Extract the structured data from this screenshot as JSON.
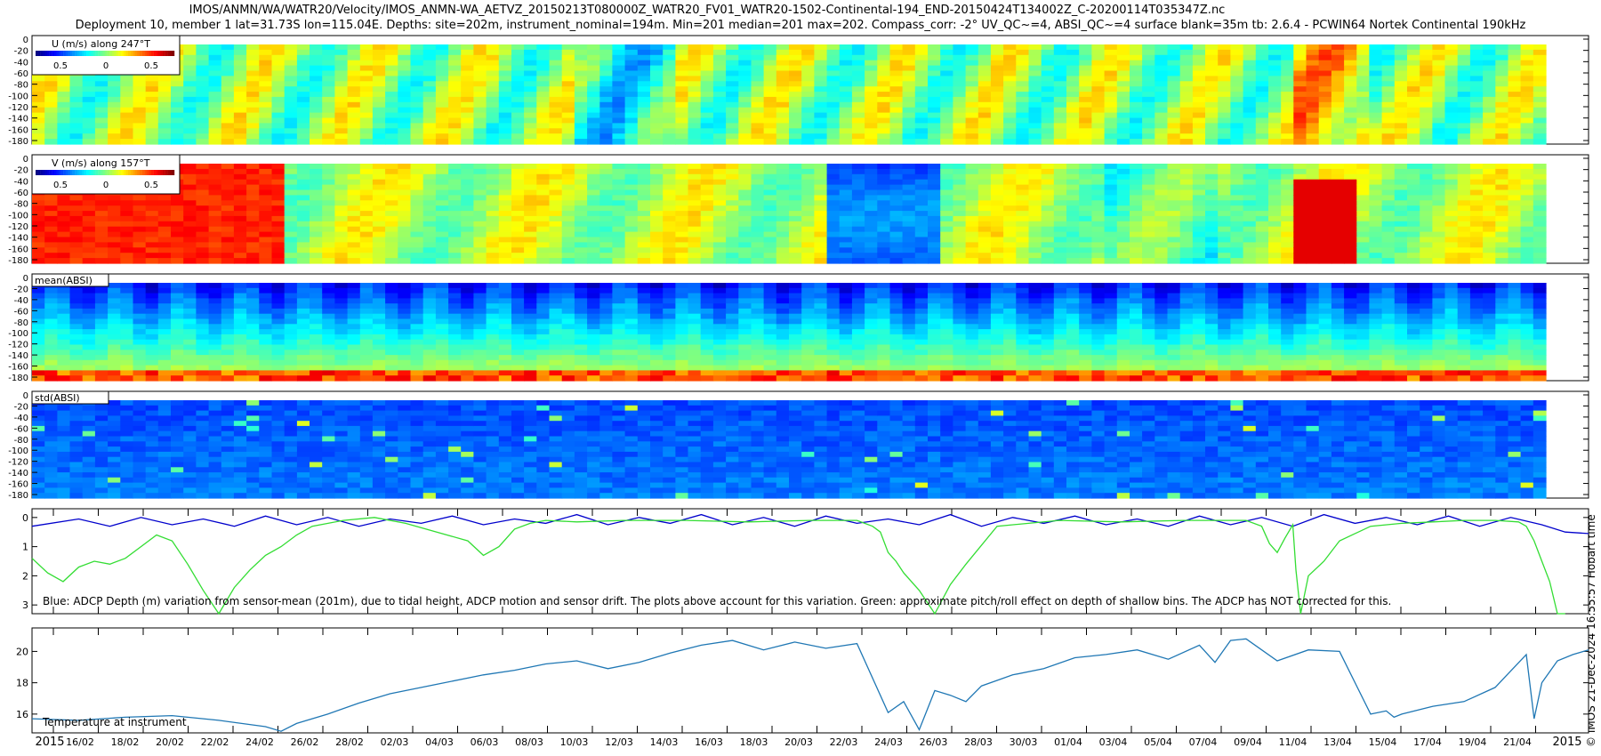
{
  "title": {
    "line1": "IMOS/ANMN/WA/WATR20/Velocity/IMOS_ANMN-WA_AETVZ_20150213T080000Z_WATR20_FV01_WATR20-1502-Continental-194_END-20150424T134002Z_C-20200114T035347Z.nc",
    "line2": "Deployment 10, member 1 lat=31.73S lon=115.04E. Depths: site=202m, instrument_nominal=194m. Min=201 median=201 max=202. Compass_corr: -2° UV_QC~=4, ABSI_QC~=4 surface blank=35m tb: 2.6.4 - PCWIN64 Nortek Continental 190kHz"
  },
  "credit": "© IMOS 21-Dec-2024 16:55:57 Hobart time",
  "chart_data": [
    {
      "type": "heatmap",
      "id": "u",
      "label": "U (m/s) along 247°T",
      "colorbar_ticks": [
        "0.5",
        "0",
        "0.5"
      ],
      "y_ticks": [
        "0",
        "-20",
        "-40",
        "-60",
        "-80",
        "-100",
        "-120",
        "-140",
        "-160",
        "-180"
      ],
      "ylim": [
        -190,
        0
      ]
    },
    {
      "type": "heatmap",
      "id": "v",
      "label": "V (m/s) along 157°T",
      "colorbar_ticks": [
        "0.5",
        "0",
        "0.5"
      ],
      "y_ticks": [
        "0",
        "-20",
        "-40",
        "-60",
        "-80",
        "-100",
        "-120",
        "-140",
        "-160",
        "-180"
      ],
      "ylim": [
        -190,
        0
      ]
    },
    {
      "type": "heatmap",
      "id": "mean_absi",
      "label": "mean(ABSI)",
      "y_ticks": [
        "0",
        "-20",
        "-40",
        "-60",
        "-80",
        "-100",
        "-120",
        "-140",
        "-160",
        "-180"
      ],
      "ylim": [
        -190,
        0
      ]
    },
    {
      "type": "heatmap",
      "id": "std_absi",
      "label": "std(ABSI)",
      "y_ticks": [
        "0",
        "-20",
        "-40",
        "-60",
        "-80",
        "-100",
        "-120",
        "-140",
        "-160",
        "-180"
      ],
      "ylim": [
        -190,
        0
      ]
    },
    {
      "type": "line",
      "id": "depth",
      "annotation": "Blue: ADCP Depth (m) variation from sensor-mean (201m), due to tidal height, ADCP motion and sensor drift. The plots above account for this variation. Green: approximate pitch/roll effect on depth of shallow bins. The ADCP has NOT corrected for this.",
      "y_ticks": [
        "0",
        "1",
        "2",
        "3"
      ],
      "ylim": [
        3.3,
        -0.3
      ],
      "series": [
        {
          "name": "ADCP depth variation",
          "color": "#0000cc",
          "x": [
            0,
            0.03,
            0.05,
            0.07,
            0.09,
            0.11,
            0.13,
            0.15,
            0.17,
            0.19,
            0.21,
            0.23,
            0.25,
            0.27,
            0.29,
            0.31,
            0.33,
            0.35,
            0.37,
            0.39,
            0.41,
            0.43,
            0.45,
            0.47,
            0.49,
            0.51,
            0.53,
            0.55,
            0.57,
            0.59,
            0.61,
            0.63,
            0.65,
            0.67,
            0.69,
            0.71,
            0.73,
            0.75,
            0.77,
            0.79,
            0.81,
            0.83,
            0.85,
            0.87,
            0.89,
            0.91,
            0.93,
            0.95,
            0.97,
            0.985,
            1.0
          ],
          "y": [
            0.3,
            0.05,
            0.3,
            0.0,
            0.25,
            0.05,
            0.3,
            -0.05,
            0.25,
            0.0,
            0.3,
            0.05,
            0.2,
            -0.05,
            0.25,
            0.05,
            0.2,
            -0.1,
            0.25,
            0.0,
            0.2,
            -0.1,
            0.25,
            0.0,
            0.3,
            -0.05,
            0.2,
            0.05,
            0.25,
            -0.1,
            0.3,
            0.0,
            0.2,
            -0.05,
            0.25,
            0.05,
            0.3,
            -0.05,
            0.25,
            0.0,
            0.3,
            -0.1,
            0.2,
            0.0,
            0.25,
            -0.05,
            0.3,
            0.0,
            0.25,
            0.5,
            0.55
          ]
        },
        {
          "name": "pitch/roll effect",
          "color": "#33dd33",
          "x": [
            0,
            0.01,
            0.02,
            0.03,
            0.04,
            0.05,
            0.06,
            0.07,
            0.08,
            0.09,
            0.1,
            0.11,
            0.12,
            0.13,
            0.14,
            0.15,
            0.16,
            0.17,
            0.18,
            0.2,
            0.22,
            0.24,
            0.26,
            0.28,
            0.29,
            0.3,
            0.31,
            0.32,
            0.33,
            0.35,
            0.38,
            0.42,
            0.46,
            0.5,
            0.53,
            0.54,
            0.545,
            0.55,
            0.555,
            0.56,
            0.57,
            0.58,
            0.59,
            0.6,
            0.62,
            0.66,
            0.7,
            0.74,
            0.78,
            0.79,
            0.795,
            0.8,
            0.805,
            0.81,
            0.812,
            0.815,
            0.82,
            0.83,
            0.84,
            0.86,
            0.88,
            0.9,
            0.92,
            0.94,
            0.955,
            0.96,
            0.965,
            0.97,
            0.975,
            0.98,
            0.985
          ],
          "y": [
            1.4,
            1.9,
            2.2,
            1.7,
            1.5,
            1.6,
            1.4,
            1.0,
            0.6,
            0.8,
            1.6,
            2.5,
            3.3,
            2.4,
            1.8,
            1.3,
            1.0,
            0.6,
            0.3,
            0.1,
            0.0,
            0.2,
            0.5,
            0.8,
            1.3,
            1.0,
            0.4,
            0.2,
            0.1,
            0.15,
            0.1,
            0.1,
            0.15,
            0.1,
            0.1,
            0.3,
            0.5,
            1.2,
            1.5,
            1.9,
            2.5,
            3.3,
            2.3,
            1.6,
            0.3,
            0.1,
            0.15,
            0.1,
            0.1,
            0.3,
            0.9,
            1.2,
            0.7,
            0.25,
            1.8,
            3.3,
            2.0,
            1.5,
            0.8,
            0.3,
            0.2,
            0.15,
            0.1,
            0.1,
            0.15,
            0.3,
            0.8,
            1.5,
            2.2,
            3.3,
            3.3
          ]
        }
      ]
    },
    {
      "type": "line",
      "id": "temperature",
      "annotation": "Temperature at instrument",
      "y_ticks": [
        "16",
        "18",
        "20"
      ],
      "ylim": [
        14.8,
        21.5
      ],
      "series": [
        {
          "name": "Temperature",
          "color": "#1f77b4",
          "x": [
            0,
            0.03,
            0.06,
            0.09,
            0.12,
            0.15,
            0.16,
            0.17,
            0.19,
            0.21,
            0.23,
            0.26,
            0.29,
            0.31,
            0.33,
            0.35,
            0.37,
            0.39,
            0.41,
            0.43,
            0.45,
            0.47,
            0.49,
            0.51,
            0.53,
            0.55,
            0.56,
            0.57,
            0.58,
            0.59,
            0.6,
            0.61,
            0.63,
            0.65,
            0.67,
            0.69,
            0.71,
            0.73,
            0.75,
            0.76,
            0.77,
            0.78,
            0.8,
            0.82,
            0.84,
            0.86,
            0.87,
            0.875,
            0.88,
            0.9,
            0.92,
            0.94,
            0.96,
            0.965,
            0.97,
            0.98,
            0.99,
            1.0
          ],
          "y": [
            15.7,
            15.6,
            15.8,
            15.9,
            15.6,
            15.2,
            14.9,
            15.4,
            16.0,
            16.7,
            17.3,
            17.9,
            18.5,
            18.8,
            19.2,
            19.4,
            18.9,
            19.3,
            19.9,
            20.4,
            20.7,
            20.1,
            20.6,
            20.2,
            20.5,
            16.1,
            16.8,
            15.0,
            17.5,
            17.2,
            16.8,
            17.8,
            18.5,
            18.9,
            19.6,
            19.8,
            20.1,
            19.5,
            20.4,
            19.3,
            20.7,
            20.8,
            19.4,
            20.1,
            20.0,
            16.0,
            16.2,
            15.8,
            16.0,
            16.5,
            16.8,
            17.7,
            19.8,
            15.7,
            18.0,
            19.4,
            19.8,
            20.1
          ]
        }
      ],
      "x_ticks": [
        "2015",
        "16/02",
        "18/02",
        "20/02",
        "22/02",
        "24/02",
        "26/02",
        "28/02",
        "02/03",
        "04/03",
        "06/03",
        "08/03",
        "10/03",
        "12/03",
        "14/03",
        "16/03",
        "18/03",
        "20/03",
        "22/03",
        "24/03",
        "26/03",
        "28/03",
        "30/03",
        "01/04",
        "03/04",
        "05/04",
        "07/04",
        "09/04",
        "11/04",
        "13/04",
        "15/04",
        "17/04",
        "19/04",
        "21/04",
        "2015"
      ]
    }
  ]
}
